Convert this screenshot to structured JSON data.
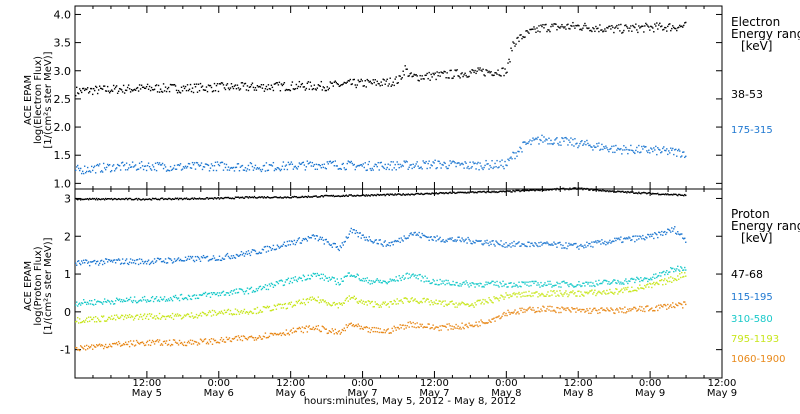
{
  "chart_data": [
    {
      "type": "scatter",
      "panel": "electron",
      "ylabel_lines": [
        "ACE EPAM",
        "log(Electron Flux)",
        "[1/(cm²s ster MeV)]"
      ],
      "legend_title": [
        "Electron",
        "Energy range",
        "[keV]"
      ],
      "ylim": [
        0.9,
        4.15
      ],
      "yticks": [
        1.0,
        1.5,
        2.0,
        2.5,
        3.0,
        3.5,
        4.0
      ],
      "ytick_labels": [
        "1.0",
        "1.5",
        "2.0",
        "2.5",
        "3.0",
        "3.5",
        "4.0"
      ],
      "grid": false,
      "legend_position": "right",
      "series": [
        {
          "name": "38-53",
          "color": "#000000",
          "points": [
            [
              0,
              2.65
            ],
            [
              6,
              2.68
            ],
            [
              12,
              2.7
            ],
            [
              18,
              2.7
            ],
            [
              24,
              2.72
            ],
            [
              30,
              2.72
            ],
            [
              36,
              2.74
            ],
            [
              42,
              2.74
            ],
            [
              46,
              2.78
            ],
            [
              52,
              2.8
            ],
            [
              54,
              2.85
            ],
            [
              55,
              3.05
            ],
            [
              56,
              2.9
            ],
            [
              60,
              2.92
            ],
            [
              66,
              2.98
            ],
            [
              70,
              3.0
            ],
            [
              72,
              3.0
            ],
            [
              73,
              3.5
            ],
            [
              75,
              3.65
            ],
            [
              78,
              3.78
            ],
            [
              84,
              3.8
            ],
            [
              90,
              3.75
            ],
            [
              96,
              3.78
            ],
            [
              102,
              3.8
            ]
          ]
        },
        {
          "name": "175-315",
          "color": "#1f78d1",
          "points": [
            [
              0,
              1.25
            ],
            [
              6,
              1.3
            ],
            [
              12,
              1.32
            ],
            [
              18,
              1.3
            ],
            [
              24,
              1.32
            ],
            [
              30,
              1.3
            ],
            [
              36,
              1.32
            ],
            [
              42,
              1.35
            ],
            [
              48,
              1.32
            ],
            [
              54,
              1.33
            ],
            [
              60,
              1.35
            ],
            [
              66,
              1.33
            ],
            [
              72,
              1.35
            ],
            [
              73,
              1.5
            ],
            [
              75,
              1.7
            ],
            [
              78,
              1.8
            ],
            [
              84,
              1.72
            ],
            [
              90,
              1.62
            ],
            [
              96,
              1.6
            ],
            [
              102,
              1.55
            ]
          ]
        }
      ]
    },
    {
      "type": "scatter",
      "panel": "proton",
      "ylabel_lines": [
        "ACE EPAM",
        "log(Proton Flux)",
        "[1/(cm²s ster MeV)]"
      ],
      "legend_title": [
        "Proton",
        "Energy range",
        "[keV]"
      ],
      "ylim": [
        -1.75,
        3.25
      ],
      "yticks": [
        -1,
        0,
        1,
        2,
        3
      ],
      "ytick_labels": [
        "-1",
        "0",
        "1",
        "2",
        "3"
      ],
      "xlabel": "hours:minutes, May  5, 2012 - May  8, 2012",
      "xticks": [
        12,
        24,
        36,
        48,
        60,
        72,
        84,
        96,
        108
      ],
      "xtick_time_labels": [
        "12:00",
        "0:00",
        "12:00",
        "0:00",
        "12:00",
        "0:00",
        "12:00",
        "0:00",
        "12:00"
      ],
      "xtick_date_labels": [
        "May 5",
        "May 6",
        "May 6",
        "May 7",
        "May 7",
        "May 8",
        "May 8",
        "May 9",
        "May 9"
      ],
      "xlim": [
        0,
        108
      ],
      "grid": false,
      "legend_position": "right",
      "series": [
        {
          "name": "47-68",
          "color": "#000000",
          "points": [
            [
              0,
              3.0
            ],
            [
              12,
              3.0
            ],
            [
              24,
              3.02
            ],
            [
              30,
              3.05
            ],
            [
              36,
              3.05
            ],
            [
              42,
              3.08
            ],
            [
              48,
              3.1
            ],
            [
              54,
              3.12
            ],
            [
              60,
              3.15
            ],
            [
              66,
              3.18
            ],
            [
              72,
              3.2
            ],
            [
              78,
              3.25
            ],
            [
              84,
              3.28
            ],
            [
              90,
              3.2
            ],
            [
              96,
              3.15
            ],
            [
              102,
              3.1
            ]
          ]
        },
        {
          "name": "115-195",
          "color": "#1f78d1",
          "points": [
            [
              0,
              1.3
            ],
            [
              6,
              1.35
            ],
            [
              12,
              1.35
            ],
            [
              18,
              1.4
            ],
            [
              24,
              1.45
            ],
            [
              30,
              1.6
            ],
            [
              36,
              1.85
            ],
            [
              40,
              2.0
            ],
            [
              44,
              1.7
            ],
            [
              46,
              2.15
            ],
            [
              48,
              2.0
            ],
            [
              52,
              1.8
            ],
            [
              54,
              1.9
            ],
            [
              56,
              2.1
            ],
            [
              60,
              1.95
            ],
            [
              66,
              1.9
            ],
            [
              72,
              1.8
            ],
            [
              78,
              1.8
            ],
            [
              84,
              1.75
            ],
            [
              90,
              1.9
            ],
            [
              96,
              2.0
            ],
            [
              100,
              2.2
            ],
            [
              102,
              1.9
            ]
          ]
        },
        {
          "name": "310-580",
          "color": "#19c9c9",
          "points": [
            [
              0,
              0.25
            ],
            [
              6,
              0.3
            ],
            [
              12,
              0.35
            ],
            [
              18,
              0.4
            ],
            [
              24,
              0.5
            ],
            [
              30,
              0.6
            ],
            [
              36,
              0.85
            ],
            [
              40,
              1.0
            ],
            [
              44,
              0.8
            ],
            [
              46,
              1.05
            ],
            [
              48,
              0.85
            ],
            [
              52,
              0.8
            ],
            [
              54,
              0.9
            ],
            [
              56,
              1.0
            ],
            [
              60,
              0.8
            ],
            [
              66,
              0.75
            ],
            [
              72,
              0.75
            ],
            [
              78,
              0.75
            ],
            [
              84,
              0.75
            ],
            [
              90,
              0.8
            ],
            [
              96,
              0.9
            ],
            [
              100,
              1.15
            ],
            [
              102,
              1.2
            ]
          ]
        },
        {
          "name": "795-1193",
          "color": "#c8e61e",
          "points": [
            [
              0,
              -0.2
            ],
            [
              6,
              -0.15
            ],
            [
              12,
              -0.1
            ],
            [
              18,
              -0.1
            ],
            [
              24,
              0.0
            ],
            [
              30,
              0.05
            ],
            [
              36,
              0.2
            ],
            [
              40,
              0.35
            ],
            [
              44,
              0.2
            ],
            [
              46,
              0.4
            ],
            [
              48,
              0.25
            ],
            [
              52,
              0.2
            ],
            [
              54,
              0.3
            ],
            [
              56,
              0.35
            ],
            [
              60,
              0.25
            ],
            [
              66,
              0.2
            ],
            [
              70,
              0.35
            ],
            [
              72,
              0.45
            ],
            [
              78,
              0.5
            ],
            [
              84,
              0.5
            ],
            [
              90,
              0.55
            ],
            [
              96,
              0.7
            ],
            [
              100,
              0.9
            ],
            [
              102,
              1.05
            ]
          ]
        },
        {
          "name": "1060-1900",
          "color": "#e8891a",
          "points": [
            [
              0,
              -0.95
            ],
            [
              6,
              -0.85
            ],
            [
              12,
              -0.8
            ],
            [
              18,
              -0.8
            ],
            [
              24,
              -0.75
            ],
            [
              30,
              -0.65
            ],
            [
              36,
              -0.5
            ],
            [
              40,
              -0.4
            ],
            [
              44,
              -0.55
            ],
            [
              46,
              -0.3
            ],
            [
              48,
              -0.45
            ],
            [
              52,
              -0.5
            ],
            [
              54,
              -0.4
            ],
            [
              56,
              -0.3
            ],
            [
              60,
              -0.4
            ],
            [
              66,
              -0.35
            ],
            [
              70,
              -0.15
            ],
            [
              72,
              0.0
            ],
            [
              78,
              0.1
            ],
            [
              84,
              0.05
            ],
            [
              90,
              0.05
            ],
            [
              96,
              0.1
            ],
            [
              100,
              0.2
            ],
            [
              102,
              0.2
            ]
          ]
        }
      ]
    }
  ]
}
